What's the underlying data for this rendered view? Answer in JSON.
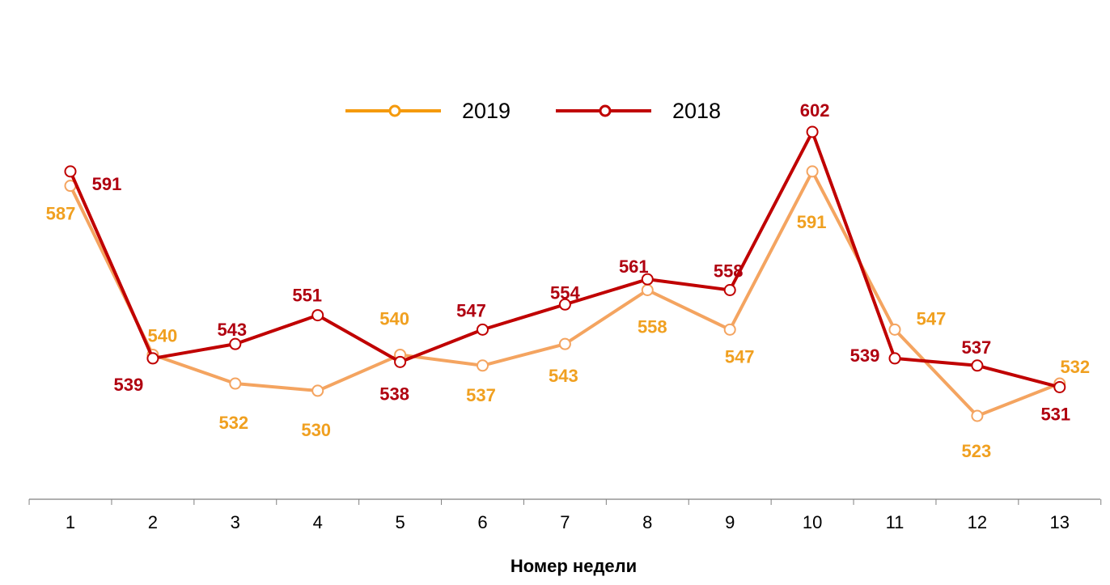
{
  "chart_data": {
    "type": "line",
    "title": "",
    "xlabel": "Номер недели",
    "ylabel": "",
    "x": [
      "1",
      "2",
      "3",
      "4",
      "5",
      "6",
      "7",
      "8",
      "9",
      "10",
      "11",
      "12",
      "13"
    ],
    "ylim": [
      498,
      634
    ],
    "grid": false,
    "legend": {
      "placement": "top-center"
    },
    "series": [
      {
        "name": "2019",
        "line_color": "#F4A460",
        "marker_color": "#F4A460",
        "label_color": "#F0A020",
        "legend_color": "#F59A0C",
        "values": [
          587,
          540,
          532,
          530,
          540,
          537,
          543,
          558,
          547,
          591,
          547,
          523,
          532
        ]
      },
      {
        "name": "2018",
        "line_color": "#C00000",
        "marker_color": "#C00000",
        "label_color": "#B00010",
        "legend_color": "#C00000",
        "values": [
          591,
          539,
          543,
          551,
          538,
          547,
          554,
          561,
          558,
          602,
          539,
          537,
          531
        ]
      }
    ]
  }
}
